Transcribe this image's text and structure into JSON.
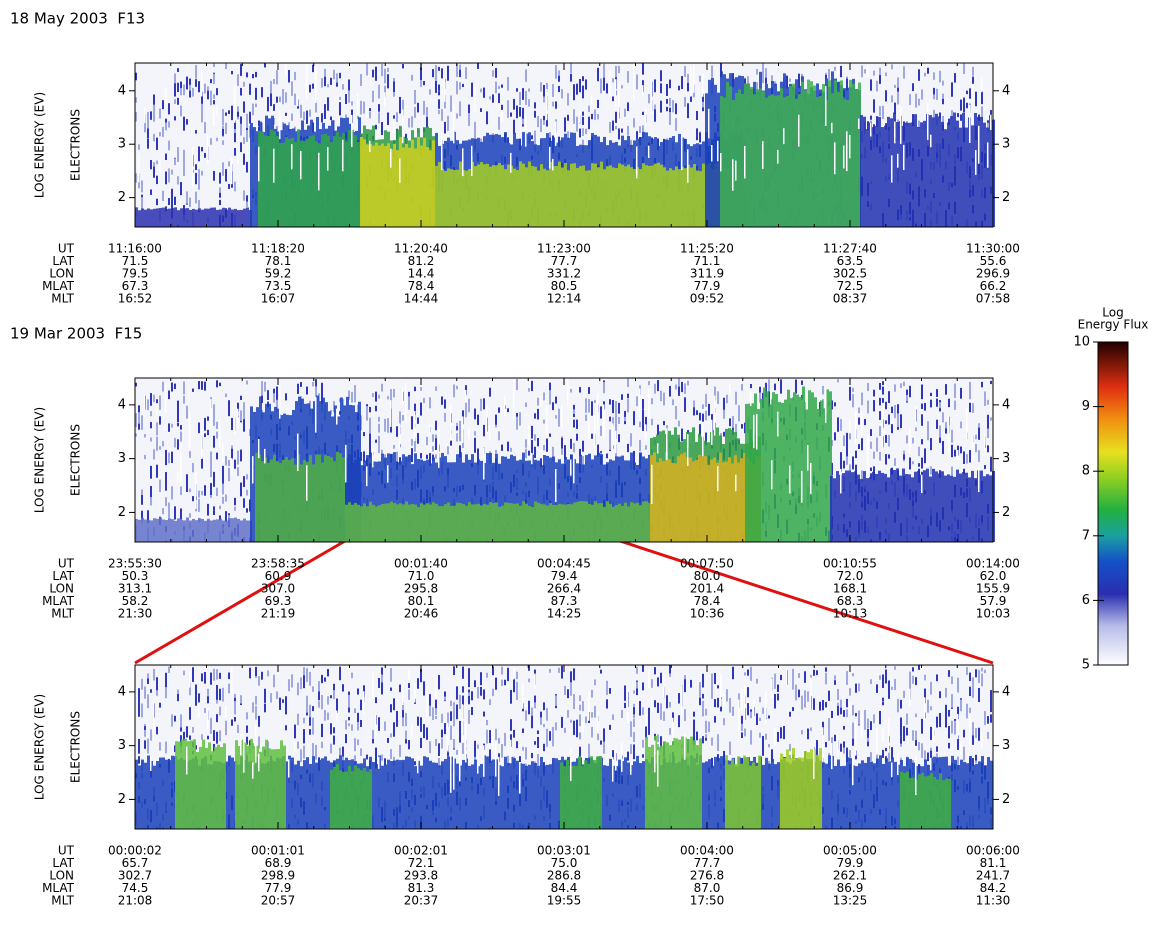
{
  "panels": [
    {
      "header": "18 May 2003  F13",
      "y_label": "LOG ENERGY (EV)",
      "species_label": "ELECTRONS",
      "ylim": [
        1.45,
        4.52
      ],
      "yticks": [
        2,
        3,
        4
      ],
      "rows": [
        {
          "label": "UT",
          "values": [
            "11:16:00",
            "11:18:20",
            "11:20:40",
            "11:23:00",
            "11:25:20",
            "11:27:40",
            "11:30:00"
          ]
        },
        {
          "label": "LAT",
          "values": [
            "71.5",
            "78.1",
            "81.2",
            "77.7",
            "71.1",
            "63.5",
            "55.6"
          ]
        },
        {
          "label": "LON",
          "values": [
            "79.5",
            "59.2",
            "14.4",
            "331.2",
            "311.9",
            "302.5",
            "296.9"
          ]
        },
        {
          "label": "MLAT",
          "values": [
            "67.3",
            "73.5",
            "78.4",
            "80.5",
            "77.9",
            "72.5",
            "66.2"
          ]
        },
        {
          "label": "MLT",
          "values": [
            "16:52",
            "16:07",
            "14:44",
            "12:14",
            "09:52",
            "08:37",
            "07:58"
          ]
        }
      ]
    },
    {
      "header": "19 Mar 2003  F15",
      "y_label": "LOG ENERGY (EV)",
      "species_label": "ELECTRONS",
      "ylim": [
        1.45,
        4.5
      ],
      "yticks": [
        2,
        3,
        4
      ],
      "rows": [
        {
          "label": "UT",
          "values": [
            "23:55:30",
            "23:58:35",
            "00:01:40",
            "00:04:45",
            "00:07:50",
            "00:10:55",
            "00:14:00"
          ]
        },
        {
          "label": "LAT",
          "values": [
            "50.3",
            "60.9",
            "71.0",
            "79.4",
            "80.0",
            "72.0",
            "62.0"
          ]
        },
        {
          "label": "LON",
          "values": [
            "313.1",
            "307.0",
            "295.8",
            "266.4",
            "201.4",
            "168.1",
            "155.9"
          ]
        },
        {
          "label": "MLAT",
          "values": [
            "58.2",
            "69.3",
            "80.1",
            "87.3",
            "78.4",
            "68.3",
            "57.9"
          ]
        },
        {
          "label": "MLT",
          "values": [
            "21:30",
            "21:19",
            "20:46",
            "14:25",
            "10:36",
            "10:13",
            "10:03"
          ]
        }
      ]
    },
    {
      "y_label": "LOG ENERGY (EV)",
      "species_label": "ELECTRONS",
      "ylim": [
        1.45,
        4.5
      ],
      "yticks": [
        2,
        3,
        4
      ],
      "rows": [
        {
          "label": "UT",
          "values": [
            "00:00:02",
            "00:01:01",
            "00:02:01",
            "00:03:01",
            "00:04:00",
            "00:05:00",
            "00:06:00"
          ]
        },
        {
          "label": "LAT",
          "values": [
            "65.7",
            "68.9",
            "72.1",
            "75.0",
            "77.7",
            "79.9",
            "81.1"
          ]
        },
        {
          "label": "LON",
          "values": [
            "302.7",
            "298.9",
            "293.8",
            "286.8",
            "276.8",
            "262.1",
            "241.7"
          ]
        },
        {
          "label": "MLAT",
          "values": [
            "74.5",
            "77.9",
            "81.3",
            "84.4",
            "87.0",
            "86.9",
            "84.2"
          ]
        },
        {
          "label": "MLT",
          "values": [
            "21:08",
            "20:57",
            "20:37",
            "19:55",
            "17:50",
            "13:25",
            "11:30"
          ]
        }
      ]
    }
  ],
  "colorbar": {
    "title": [
      "Log",
      "Energy Flux"
    ],
    "lim": [
      5,
      10
    ],
    "ticks": [
      5,
      6,
      7,
      8,
      9,
      10
    ]
  }
}
